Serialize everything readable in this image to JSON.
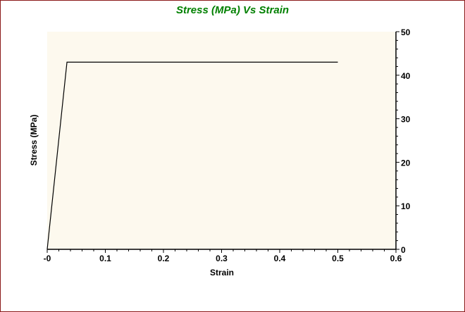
{
  "chart_data": {
    "type": "line",
    "title": "Stress (MPa) Vs Strain",
    "xlabel": "Strain",
    "ylabel": "Stress (MPa)",
    "xlim": [
      0,
      0.6
    ],
    "ylim": [
      0,
      50
    ],
    "x_ticks": [
      "-0",
      "0.1",
      "0.2",
      "0.3",
      "0.4",
      "0.5",
      "0.6"
    ],
    "y_ticks": [
      "0",
      "10",
      "20",
      "30",
      "40",
      "50"
    ],
    "y_axis_side": "right",
    "grid": false,
    "series": [
      {
        "x": [
          0,
          0.034,
          0.5
        ],
        "y": [
          0,
          43,
          43
        ],
        "color": "#000000"
      }
    ],
    "colors": {
      "title": "#008000",
      "plot_background": "#fdf9ee",
      "border": "#8b1a1a"
    }
  }
}
